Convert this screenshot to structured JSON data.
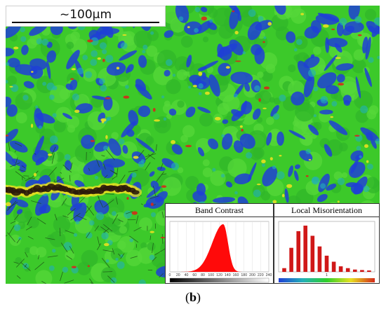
{
  "scale_bar": {
    "label": "~100µm"
  },
  "band_contrast": {
    "title": "Band Contrast",
    "ticks": [
      "0",
      "20",
      "40",
      "60",
      "80",
      "100",
      "120",
      "140",
      "160",
      "180",
      "200",
      "220",
      "240"
    ]
  },
  "local_misorientation": {
    "title": "Local Misorientation",
    "ticks": [
      "1"
    ],
    "bars": [
      0.08,
      0.52,
      0.88,
      1.0,
      0.78,
      0.55,
      0.35,
      0.22,
      0.12,
      0.08,
      0.05,
      0.04,
      0.03
    ]
  },
  "caption": {
    "open": "(",
    "letter": "b",
    "close": ")"
  },
  "colors": {
    "map_green": "#3cc92a",
    "blue": "#1f3fd6",
    "yellow": "#e8e020",
    "red": "#d42a1a",
    "dark_band": "#2a1a0a"
  }
}
